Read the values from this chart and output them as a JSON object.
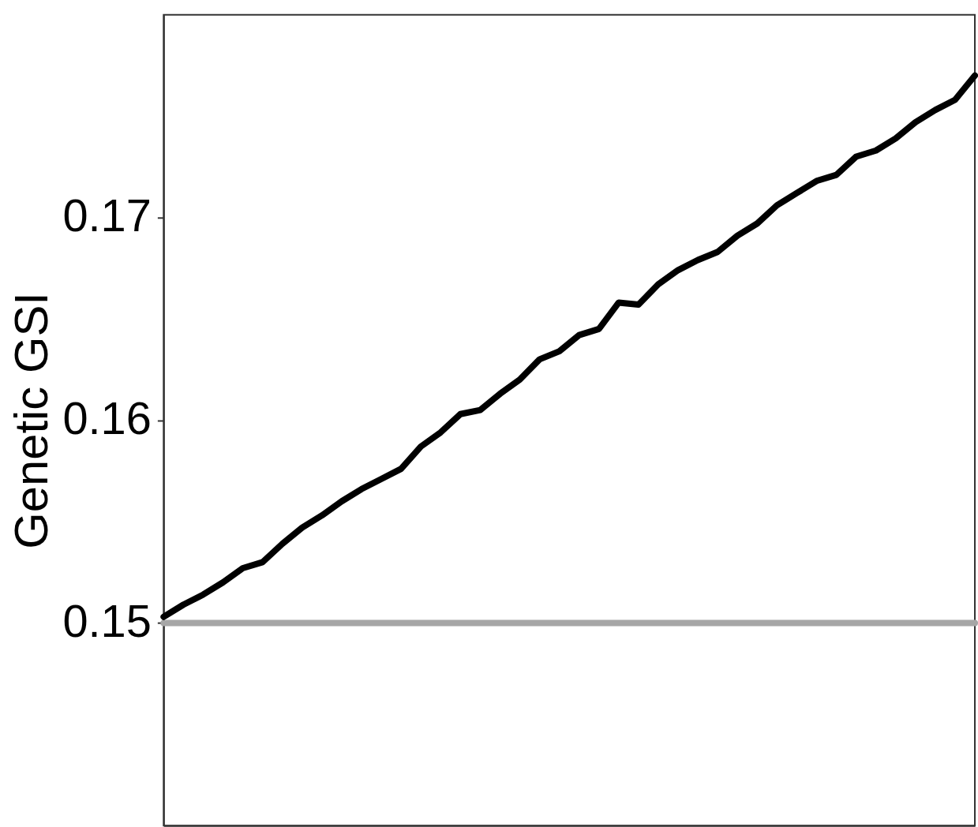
{
  "chart_data": {
    "type": "line",
    "ylabel": "Genetic GSI",
    "categories": [
      null,
      null,
      null,
      null,
      null,
      null,
      null,
      null,
      null,
      null,
      null,
      null,
      null,
      null,
      null,
      null,
      null,
      null,
      null,
      null,
      null,
      null,
      null,
      null,
      null,
      null,
      null,
      null,
      null,
      null,
      null,
      null,
      null,
      null,
      null,
      null,
      null,
      null,
      null,
      null,
      null,
      null
    ],
    "series": [
      {
        "color": "#000000",
        "values": [
          0.1503,
          0.1509,
          0.1514,
          0.152,
          0.1527,
          0.153,
          0.1539,
          0.1547,
          0.1553,
          0.156,
          0.1566,
          0.1571,
          0.1576,
          0.1587,
          0.1594,
          0.1603,
          0.1605,
          0.1613,
          0.162,
          0.163,
          0.1634,
          0.1642,
          0.1645,
          0.1658,
          0.1657,
          0.1667,
          0.1674,
          0.1679,
          0.1683,
          0.1691,
          0.1697,
          0.1706,
          0.1712,
          0.1718,
          0.1721,
          0.173,
          0.1733,
          0.1739,
          0.1747,
          0.1753,
          0.1758,
          0.177
        ]
      },
      {
        "color": "#a6a6a6",
        "values": [
          0.15,
          0.15,
          0.15,
          0.15,
          0.15,
          0.15,
          0.15,
          0.15,
          0.15,
          0.15,
          0.15,
          0.15,
          0.15,
          0.15,
          0.15,
          0.15,
          0.15,
          0.15,
          0.15,
          0.15,
          0.15,
          0.15,
          0.15,
          0.15,
          0.15,
          0.15,
          0.15,
          0.15,
          0.15,
          0.15,
          0.15,
          0.15,
          0.15,
          0.15,
          0.15,
          0.15,
          0.15,
          0.15,
          0.15,
          0.15,
          0.15,
          0.15
        ]
      }
    ],
    "ylim": [
      0.14,
      0.18
    ],
    "yticks": [
      0.15,
      0.16,
      0.17
    ],
    "tick_labels": "y",
    "grid": false
  }
}
